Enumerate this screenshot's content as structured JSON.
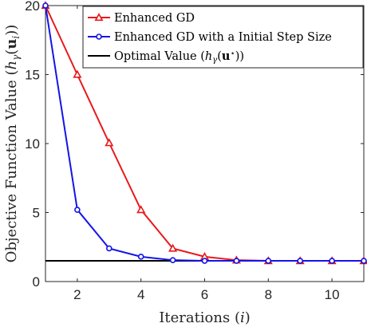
{
  "chart_data": {
    "type": "line",
    "xlabel_main": "Iterations (",
    "xlabel_var": "i",
    "xlabel_close": ")",
    "ylabel_main": "Objective Function Value (",
    "ylabel_h": "h",
    "ylabel_sub": "γ",
    "ylabel_arg_open": "(",
    "ylabel_arg": "u",
    "ylabel_arg_sub": "i",
    "ylabel_close": "))",
    "xlim": [
      1,
      11
    ],
    "ylim": [
      0,
      20
    ],
    "xticks": [
      2,
      4,
      6,
      8,
      10
    ],
    "yticks": [
      0,
      5,
      10,
      15,
      20
    ],
    "grid": false,
    "legend_position": "top-right",
    "series": [
      {
        "name": "Enhanced GD",
        "color": "#e8191b",
        "marker": "triangle",
        "x": [
          1,
          2,
          3,
          4,
          5,
          6,
          7,
          8,
          9,
          10,
          11
        ],
        "y": [
          20,
          15,
          10.05,
          5.2,
          2.4,
          1.8,
          1.55,
          1.5,
          1.5,
          1.5,
          1.5
        ]
      },
      {
        "name": "Enhanced GD with a Initial Step Size",
        "color": "#1414e6",
        "marker": "circle",
        "x": [
          1,
          2,
          3,
          4,
          5,
          6,
          7,
          8,
          9,
          10,
          11
        ],
        "y": [
          20,
          5.2,
          2.4,
          1.8,
          1.55,
          1.5,
          1.5,
          1.5,
          1.5,
          1.5,
          1.5
        ]
      }
    ],
    "reference_line": {
      "name_main": "Optimal Value (",
      "name_h": "h",
      "name_sub": "γ",
      "name_open": "(",
      "name_u": "u",
      "name_star": "⋆",
      "name_close": "))",
      "color": "#000000",
      "y": 1.5
    }
  }
}
